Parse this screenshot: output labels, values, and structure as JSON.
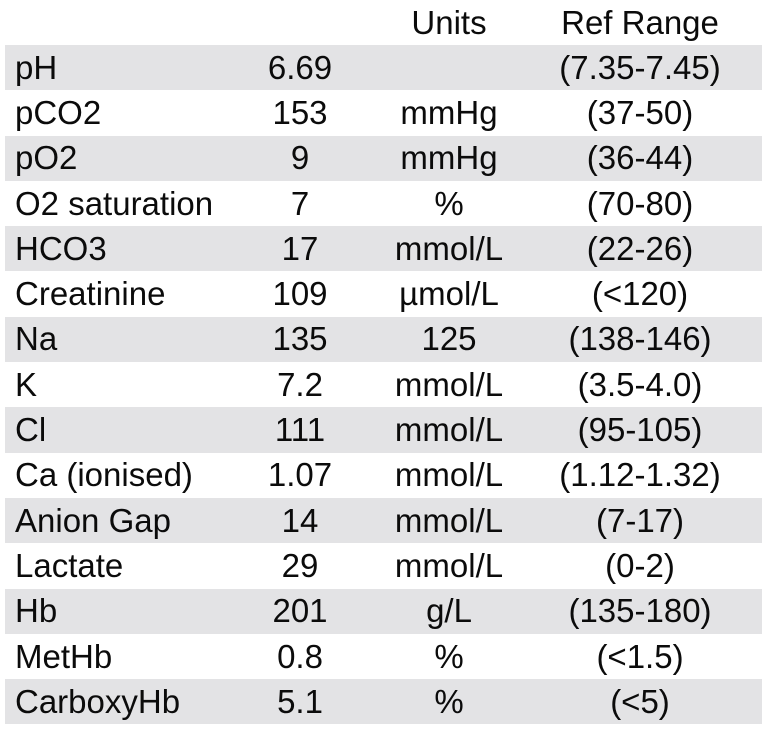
{
  "chart_data": {
    "type": "table",
    "headers": {
      "name": "",
      "value": "",
      "units": "Units",
      "ref_range": "Ref Range"
    },
    "rows": [
      {
        "name": "pH",
        "value": "6.69",
        "units": "",
        "ref": "(7.35-7.45)"
      },
      {
        "name": "pCO2",
        "value": "153",
        "units": "mmHg",
        "ref": "(37-50)"
      },
      {
        "name": "pO2",
        "value": "9",
        "units": "mmHg",
        "ref": "(36-44)"
      },
      {
        "name": "O2 saturation",
        "value": "7",
        "units": "%",
        "ref": "(70-80)"
      },
      {
        "name": "HCO3",
        "value": "17",
        "units": "mmol/L",
        "ref": "(22-26)"
      },
      {
        "name": "Creatinine",
        "value": "109",
        "units": "µmol/L",
        "ref": "(<120)"
      },
      {
        "name": "Na",
        "value": "135",
        "units": "125",
        "ref": "(138-146)"
      },
      {
        "name": "K",
        "value": "7.2",
        "units": "mmol/L",
        "ref": "(3.5-4.0)"
      },
      {
        "name": "Cl",
        "value": "111",
        "units": "mmol/L",
        "ref": "(95-105)"
      },
      {
        "name": "Ca (ionised)",
        "value": "1.07",
        "units": "mmol/L",
        "ref": "(1.12-1.32)"
      },
      {
        "name": "Anion Gap",
        "value": "14",
        "units": "mmol/L",
        "ref": "(7-17)"
      },
      {
        "name": "Lactate",
        "value": "29",
        "units": "mmol/L",
        "ref": "(0-2)"
      },
      {
        "name": "Hb",
        "value": "201",
        "units": "g/L",
        "ref": "(135-180)"
      },
      {
        "name": "MetHb",
        "value": "0.8",
        "units": "%",
        "ref": "(<1.5)"
      },
      {
        "name": "CarboxyHb",
        "value": "5.1",
        "units": "%",
        "ref": "(<5)"
      }
    ],
    "layout": {
      "striped": true,
      "stripe_pattern": "odd data rows shaded, starting with pH",
      "column_alignment": [
        "left",
        "center",
        "center",
        "center"
      ],
      "grid": false,
      "borders": false
    }
  },
  "colors": {
    "stripe": "#e3e3e5",
    "text": "#0b0b0b",
    "background": "#ffffff"
  }
}
